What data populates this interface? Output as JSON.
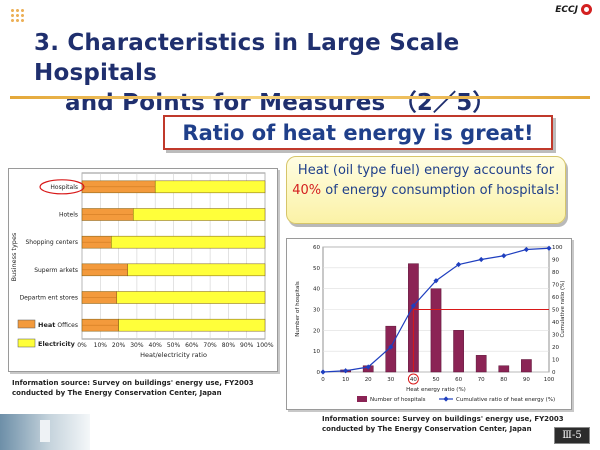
{
  "brand": {
    "logo_text": "ECCJ"
  },
  "title": {
    "line1": "3. Characteristics in Large Scale Hospitals",
    "line2": "and Points for Measures （2／5）"
  },
  "headline": "Ratio of heat energy is great!",
  "callout": {
    "part1": "Heat (oil type fuel) energy accounts for ",
    "percent": "40%",
    "part2": " of energy consumption of hospitals!"
  },
  "colors": {
    "heat": "#f39a3c",
    "electricity": "#ffff3a",
    "bar": "#8b2455",
    "line": "#1f3fbf",
    "marker": "#d81818"
  },
  "chart_data": [
    {
      "type": "bar",
      "orientation": "horizontal",
      "stacked": true,
      "categories": [
        "Hospitals",
        "Hotels",
        "Shopping centers",
        "Superm arkets",
        "Departm ent stores",
        "Offices"
      ],
      "highlighted_category": "Hospitals",
      "series": [
        {
          "name": "Heat",
          "values": [
            40,
            28,
            16,
            25,
            19,
            20
          ]
        },
        {
          "name": "Electricity",
          "values": [
            60,
            72,
            84,
            75,
            81,
            80
          ]
        }
      ],
      "xlim": [
        0,
        100
      ],
      "x_ticks": [
        "0%",
        "10%",
        "20%",
        "30%",
        "40%",
        "50%",
        "60%",
        "70%",
        "80%",
        "90%",
        "100%"
      ],
      "xlabel": "Heat/electricity ratio",
      "ylabel": "Business types",
      "grid": true,
      "legend_position": "bottom-left",
      "source": "Information source: Survey on buildings' energy use, FY2003 conducted by The Energy Conservation Center, Japan"
    },
    {
      "type": "bar+line",
      "x": [
        0,
        10,
        20,
        30,
        40,
        50,
        60,
        70,
        80,
        90,
        100
      ],
      "x_ticks": [
        "0",
        "10",
        "20",
        "30",
        "40",
        "50",
        "60",
        "70",
        "80",
        "90",
        "100"
      ],
      "series": [
        {
          "name": "Number of hospitals",
          "type": "bar",
          "axis": "left",
          "values": [
            0,
            1,
            3,
            22,
            52,
            40,
            20,
            8,
            3,
            6,
            0
          ]
        },
        {
          "name": "Cumulative ratio of heat energy (%)",
          "type": "line",
          "axis": "right",
          "values": [
            0,
            1,
            4,
            20,
            53,
            73,
            86,
            90,
            93,
            98,
            99
          ]
        }
      ],
      "ylim_left": [
        0,
        60
      ],
      "left_ticks": [
        "0",
        "10",
        "20",
        "30",
        "40",
        "50",
        "60"
      ],
      "ylim_right": [
        0,
        100
      ],
      "right_ticks": [
        "0",
        "10",
        "20",
        "30",
        "40",
        "50",
        "60",
        "70",
        "80",
        "90",
        "100"
      ],
      "xlabel": "Heat energy ratio (%)",
      "ylabel_left": "Number of hospitals",
      "ylabel_right": "Cumulative ratio (%)",
      "highlight": {
        "x": 40,
        "y_right": 50
      },
      "legend_position": "bottom",
      "source": "Information source: Survey on buildings' energy use, FY2003 conducted by The Energy Conservation Center, Japan"
    }
  ],
  "page_label": "Ⅲ-5"
}
